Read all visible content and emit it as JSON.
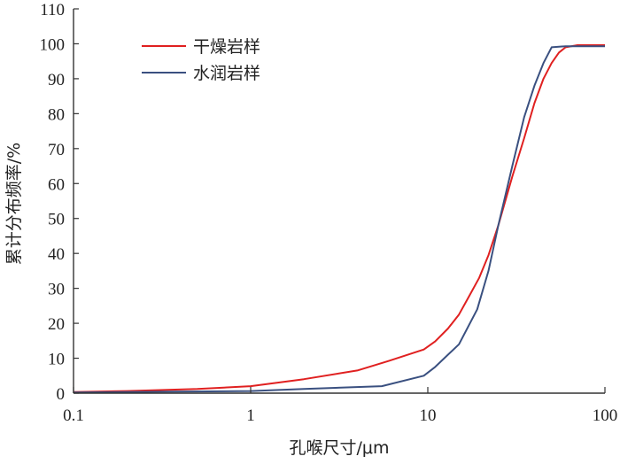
{
  "chart_data": {
    "type": "line",
    "xlabel": "孔喉尺寸/μm",
    "ylabel": "累计分布频率/%",
    "xscale": "log",
    "xlim": [
      0.1,
      100
    ],
    "ylim": [
      0,
      110
    ],
    "x_ticks": [
      "0.1",
      "1",
      "10",
      "100"
    ],
    "y_ticks": [
      "0",
      "10",
      "20",
      "30",
      "40",
      "50",
      "60",
      "70",
      "80",
      "90",
      "100",
      "110"
    ],
    "legend_position": "top-left",
    "series": [
      {
        "name": "干燥岩样",
        "color": "#e02020",
        "x": [
          0.1,
          0.2,
          0.5,
          1,
          2,
          4,
          6,
          9.5,
          11,
          13,
          15,
          17,
          19.5,
          22,
          25,
          30,
          35,
          40,
          45,
          50,
          55,
          60,
          70,
          100
        ],
        "y": [
          0.3,
          0.6,
          1.2,
          2.0,
          4.0,
          6.5,
          9.2,
          12.5,
          14.8,
          18.5,
          22.5,
          27.5,
          33.0,
          39.5,
          48.0,
          62.0,
          73.0,
          83.0,
          90.0,
          94.5,
          97.5,
          99.0,
          99.6,
          99.6
        ]
      },
      {
        "name": "水润岩样",
        "color": "#3a5080",
        "x": [
          0.1,
          0.3,
          1,
          2,
          5.5,
          9.5,
          11,
          15,
          19,
          22,
          25,
          30,
          35,
          40,
          45,
          50,
          60,
          100
        ],
        "y": [
          0.2,
          0.4,
          0.6,
          1.2,
          2.0,
          5.0,
          7.5,
          14.0,
          24.0,
          35.0,
          48.0,
          65.0,
          79.0,
          88.0,
          94.5,
          99.0,
          99.3,
          99.3
        ]
      }
    ]
  }
}
